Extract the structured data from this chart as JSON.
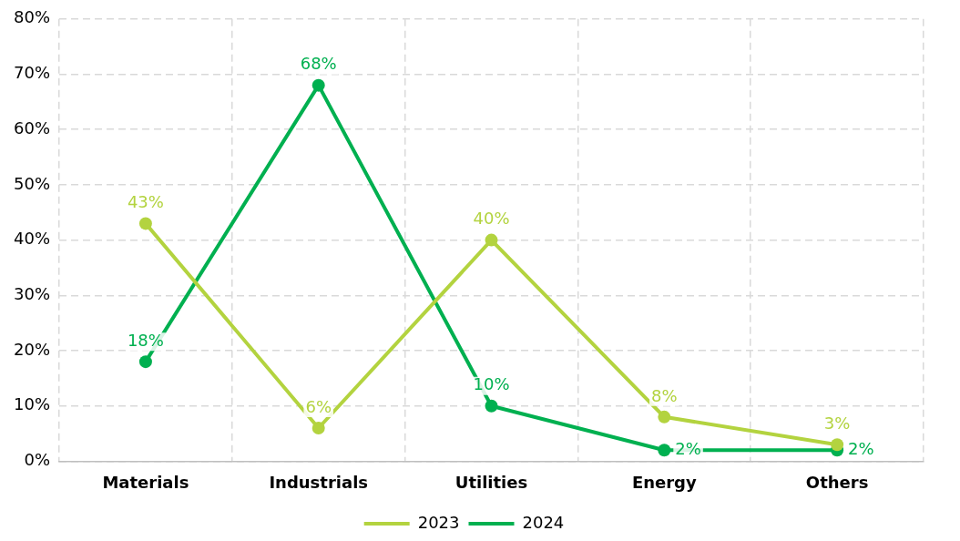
{
  "chart_data": {
    "type": "line",
    "categories": [
      "Materials",
      "Industrials",
      "Utilities",
      "Energy",
      "Others"
    ],
    "series": [
      {
        "name": "2023",
        "color": "#b3d33f",
        "values": [
          43,
          6,
          40,
          8,
          3
        ],
        "value_labels": [
          "43%",
          "6%",
          "40%",
          "8%",
          "3%"
        ]
      },
      {
        "name": "2024",
        "color": "#00b050",
        "values": [
          18,
          68,
          10,
          2,
          2
        ],
        "value_labels": [
          "18%",
          "68%",
          "10%",
          "2%",
          "2%"
        ]
      }
    ],
    "ylim": [
      0,
      80
    ],
    "yticks": [
      {
        "value": 0,
        "label": "0%"
      },
      {
        "value": 10,
        "label": "10%"
      },
      {
        "value": 20,
        "label": "20%"
      },
      {
        "value": 30,
        "label": "30%"
      },
      {
        "value": 40,
        "label": "40%"
      },
      {
        "value": 50,
        "label": "50%"
      },
      {
        "value": 60,
        "label": "60%"
      },
      {
        "value": 70,
        "label": "70%"
      },
      {
        "value": 80,
        "label": "80%"
      }
    ],
    "grid": true,
    "legend": "bottom",
    "marker": "circle",
    "line_style": "solid"
  }
}
